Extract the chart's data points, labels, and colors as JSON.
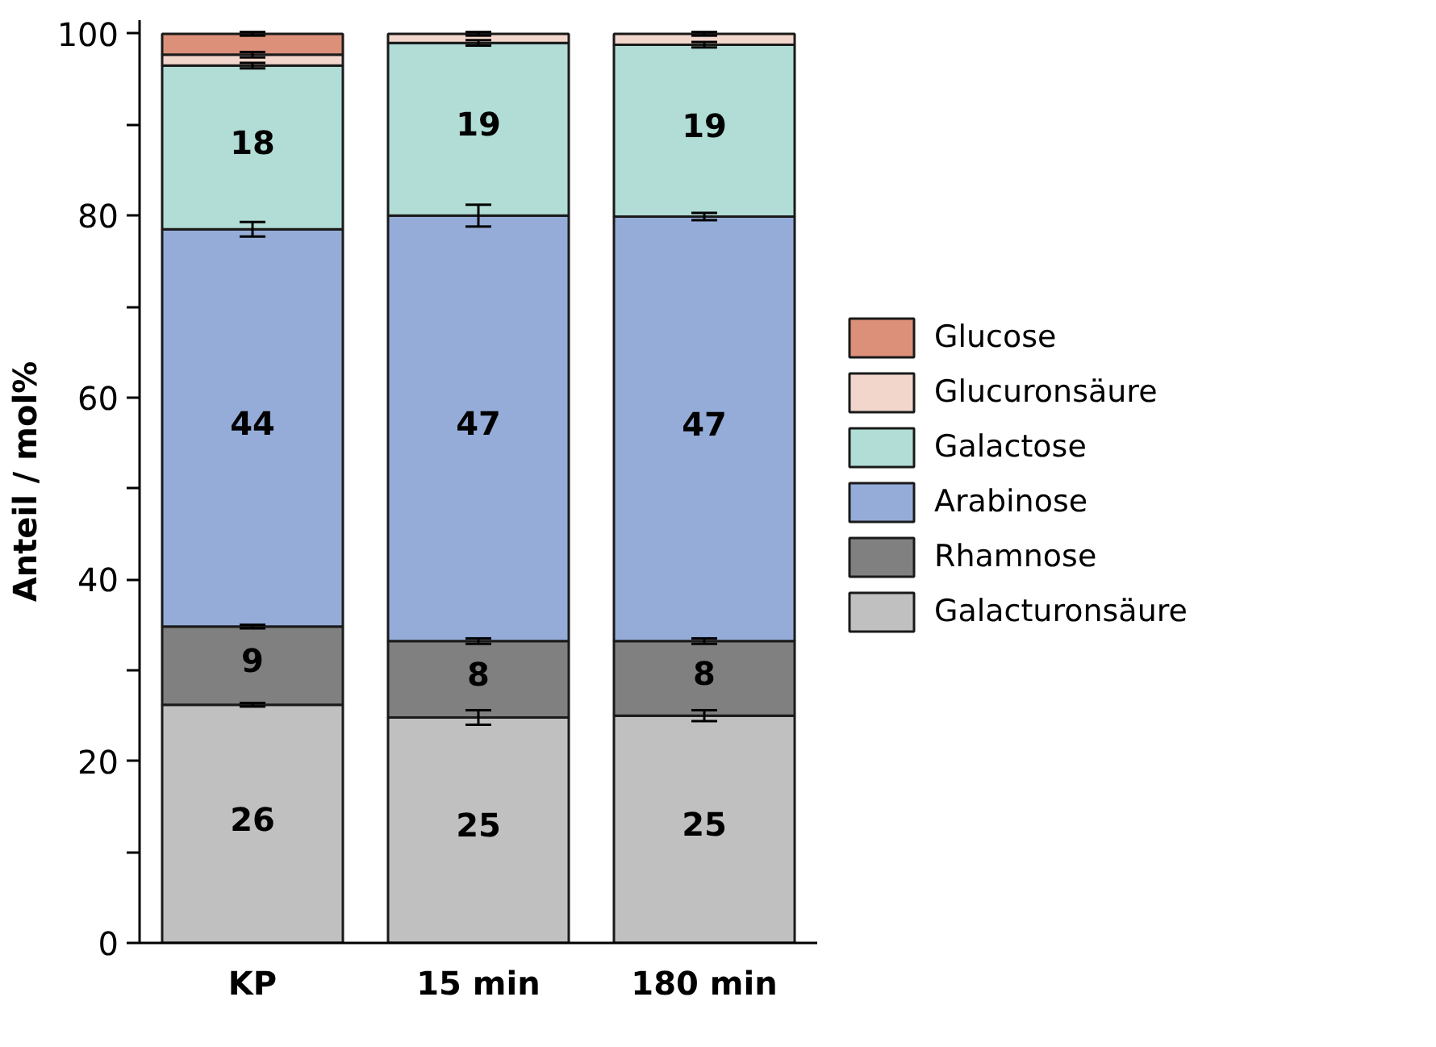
{
  "chart_data": {
    "type": "bar",
    "stacked": true,
    "ylabel": "Anteil / mol%",
    "categories": [
      "KP",
      "15 min",
      "180 min"
    ],
    "series": [
      {
        "name": "Galacturonsäure",
        "color": "#c0c0c0",
        "values": [
          26.2,
          24.8,
          25.0
        ],
        "errors": [
          0.2,
          0.8,
          0.6
        ],
        "value_labels": [
          "26",
          "25",
          "25"
        ]
      },
      {
        "name": "Rhamnose",
        "color": "#808080",
        "values": [
          8.6,
          8.4,
          8.2
        ],
        "errors": [
          0.2,
          0.3,
          0.3
        ],
        "value_labels": [
          "9",
          "8",
          "8"
        ]
      },
      {
        "name": "Arabinose",
        "color": "#95acd8",
        "values": [
          43.7,
          46.8,
          46.7
        ],
        "errors": [
          0.8,
          1.2,
          0.4
        ],
        "value_labels": [
          "44",
          "47",
          "47"
        ]
      },
      {
        "name": "Galactose",
        "color": "#b1ddd6",
        "values": [
          18.0,
          19.0,
          18.9
        ],
        "errors": [
          0.3,
          0.3,
          0.3
        ],
        "value_labels": [
          "18",
          "19",
          "19"
        ]
      },
      {
        "name": "Glucuronsäure",
        "color": "#f2d6cc",
        "values": [
          1.2,
          1.0,
          1.2
        ],
        "errors": [
          0.3,
          0.2,
          0.2
        ]
      },
      {
        "name": "Glucose",
        "color": "#dc907a",
        "values": [
          2.3,
          null,
          null
        ],
        "errors": [
          0.2,
          null,
          null
        ]
      }
    ],
    "ylim": [
      0,
      101.5
    ],
    "yticks": [
      0,
      {
        "value": 10,
        "label": null
      },
      20,
      {
        "value": 30,
        "label": null
      },
      40,
      {
        "value": 50,
        "label": null
      },
      60,
      {
        "value": 70,
        "label": null
      },
      80,
      {
        "value": 90,
        "label": null
      },
      100
    ],
    "grid": false,
    "legend": "right"
  }
}
